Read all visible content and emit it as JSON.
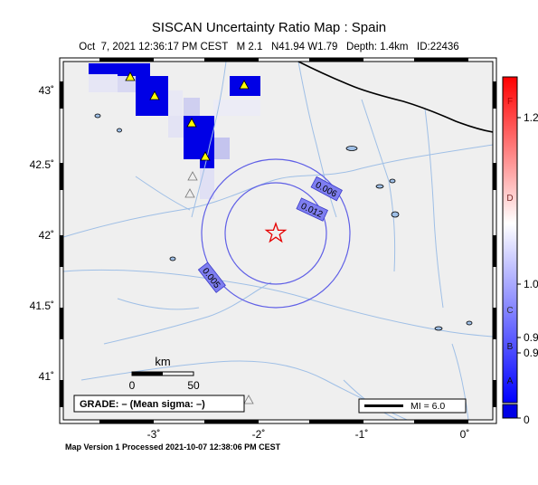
{
  "header": {
    "title": "SISCAN Uncertainty Ratio Map : Spain",
    "subtitle": "Oct  7, 2021 12:36:17 PM CEST   M 2.1   N41.94 W1.79   Depth: 1.4km   ID:22436"
  },
  "footer": {
    "processed": "Map Version 1 Processed 2021-10-07 12:38:06 PM CEST"
  },
  "axes": {
    "lat_labels": [
      "43˚",
      "42.5˚",
      "42˚",
      "41.5˚",
      "41˚"
    ],
    "lon_labels": [
      "-3˚",
      "-2˚",
      "-1˚",
      "0˚"
    ]
  },
  "event": {
    "lat": 41.94,
    "lon": -1.79,
    "marker": "star-icon"
  },
  "contours": [
    {
      "label": "0.006",
      "radius_km": 70
    },
    {
      "label": "0.012",
      "radius_km": 48
    },
    {
      "label": "0.005",
      "radius_km": 48
    }
  ],
  "scalebar": {
    "title": "km",
    "left_label": "0",
    "right_label": "50"
  },
  "grade_box": {
    "text": "GRADE: – (Mean sigma: –)"
  },
  "mi_legend": {
    "text": "MI = 6.0"
  },
  "colorbar": {
    "grade_letters": [
      "F",
      "D",
      "C",
      "B",
      "A"
    ],
    "tick_values": [
      "1.2",
      "1.0",
      "0.9",
      "0.9",
      "0"
    ],
    "colors": {
      "high": "#ff0000",
      "mid": "#ffffff",
      "low": "#0000ff"
    }
  },
  "colors": {
    "land": "#efefef",
    "rivers": "#9fbfe6",
    "contour": "#5f5fe6",
    "cell_blue": "#0000e6",
    "star": "#e60000"
  }
}
